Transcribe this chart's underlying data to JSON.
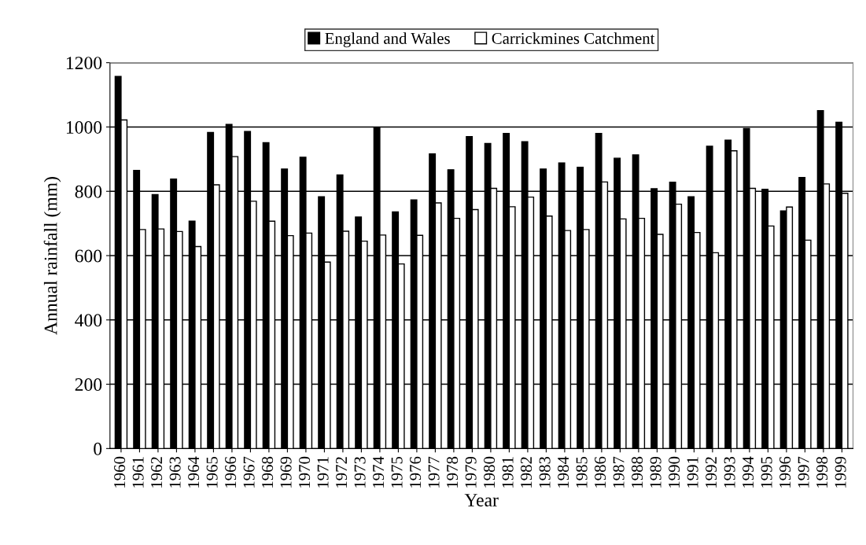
{
  "chart_data": {
    "type": "bar",
    "xlabel": "Year",
    "ylabel": "Annual rainfall (mm)",
    "categories": [
      "1960",
      "1961",
      "1962",
      "1963",
      "1964",
      "1965",
      "1966",
      "1967",
      "1968",
      "1969",
      "1970",
      "1971",
      "1972",
      "1973",
      "1974",
      "1975",
      "1976",
      "1977",
      "1978",
      "1979",
      "1980",
      "1981",
      "1982",
      "1983",
      "1984",
      "1985",
      "1986",
      "1987",
      "1988",
      "1989",
      "1990",
      "1991",
      "1992",
      "1993",
      "1994",
      "1995",
      "1996",
      "1997",
      "1998",
      "1999"
    ],
    "series": [
      {
        "name": "England and Wales",
        "color": "#000000",
        "values": [
          1157,
          865,
          790,
          838,
          707,
          983,
          1008,
          986,
          951,
          869,
          906,
          783,
          851,
          720,
          999,
          736,
          773,
          916,
          867,
          970,
          949,
          980,
          954,
          869,
          888,
          875,
          980,
          903,
          913,
          808,
          828,
          783,
          940,
          959,
          995,
          806,
          739,
          843,
          1051,
          1015
        ]
      },
      {
        "name": "Carrickmines Catchment",
        "color": "#ffffff",
        "values": [
          1022,
          681,
          683,
          675,
          628,
          820,
          908,
          769,
          707,
          662,
          670,
          580,
          676,
          645,
          664,
          574,
          663,
          764,
          716,
          743,
          809,
          752,
          782,
          723,
          678,
          681,
          829,
          714,
          716,
          666,
          760,
          672,
          609,
          926,
          809,
          692,
          751,
          648,
          823,
          794
        ]
      }
    ],
    "ylim": [
      0,
      1200
    ],
    "yticks": [
      0,
      200,
      400,
      600,
      800,
      1000,
      1200
    ],
    "grid": "y",
    "legend": "top"
  }
}
